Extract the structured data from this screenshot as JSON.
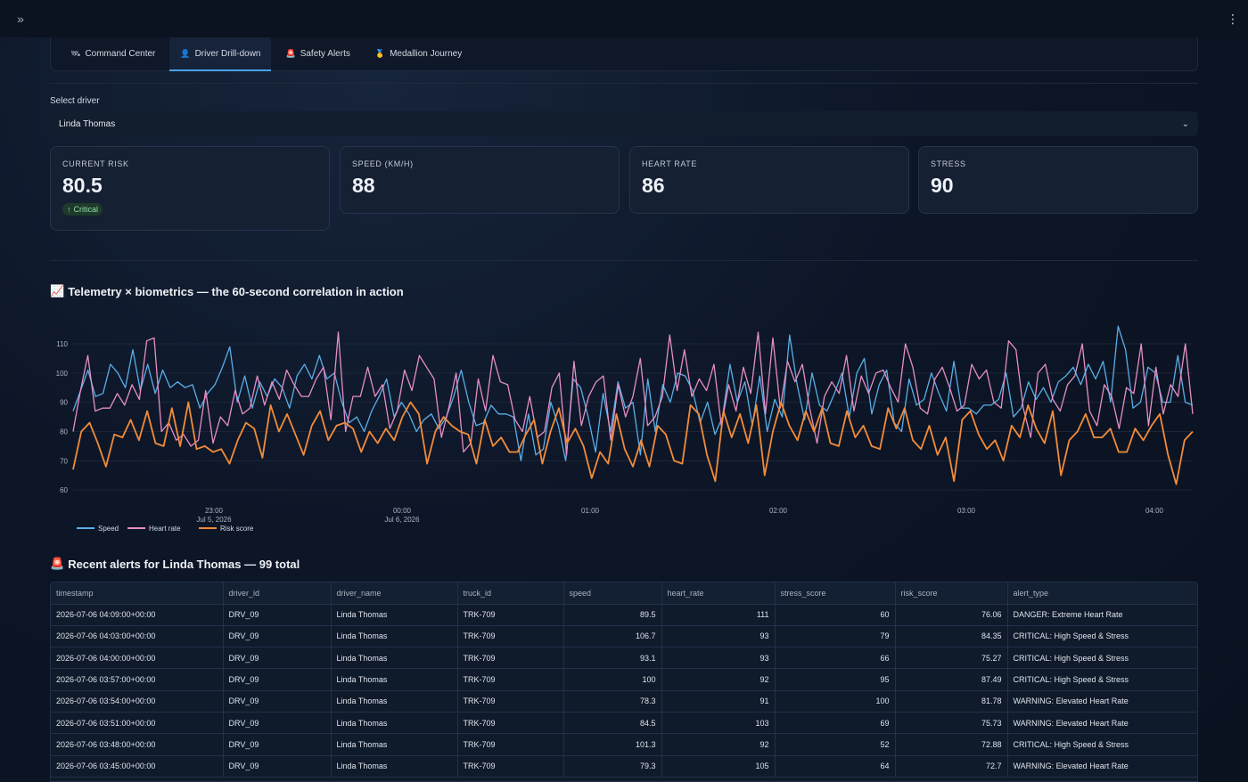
{
  "tabs": [
    {
      "icon": "🛰",
      "label": "Command Center"
    },
    {
      "icon": "👤",
      "label": "Driver Drill-down"
    },
    {
      "icon": "🚨",
      "label": "Safety Alerts"
    },
    {
      "icon": "🥇",
      "label": "Medallion Journey"
    }
  ],
  "driver_select": {
    "label": "Select driver",
    "value": "Linda Thomas"
  },
  "metrics": [
    {
      "label": "CURRENT RISK",
      "value": "80.5",
      "delta": "Critical"
    },
    {
      "label": "SPEED (KM/H)",
      "value": "88"
    },
    {
      "label": "HEART RATE",
      "value": "86"
    },
    {
      "label": "STRESS",
      "value": "90"
    }
  ],
  "chart_section": {
    "icon": "📈",
    "title": "Telemetry × biometrics — the 60-second correlation in action"
  },
  "chart_data": {
    "type": "line",
    "x_ticks": [
      {
        "label": "23:00",
        "sub": "Jul 5, 2026"
      },
      {
        "label": "00:00",
        "sub": "Jul 6, 2026"
      },
      {
        "label": "01:00",
        "sub": ""
      },
      {
        "label": "02:00",
        "sub": ""
      },
      {
        "label": "03:00",
        "sub": ""
      },
      {
        "label": "04:00",
        "sub": ""
      }
    ],
    "y_ticks": [
      60,
      70,
      80,
      90,
      100,
      110
    ],
    "ylim": [
      57,
      117
    ],
    "legend": "bottom-left",
    "series": [
      {
        "name": "Speed",
        "color": "#5aaee8",
        "values": [
          87,
          94,
          101,
          92,
          93,
          103,
          100,
          95,
          108,
          94,
          103,
          93,
          101,
          95,
          97,
          95,
          96,
          88,
          93,
          96,
          102,
          109,
          90,
          99,
          88,
          97,
          92,
          98,
          95,
          88,
          99,
          103,
          98,
          106,
          98,
          100,
          90,
          83,
          85,
          80,
          87,
          92,
          98,
          85,
          90,
          86,
          80,
          84,
          86,
          81,
          85,
          92,
          101,
          90,
          82,
          83,
          89,
          86,
          86,
          85,
          70,
          86,
          72,
          74,
          90,
          82,
          70,
          98,
          95,
          85,
          73,
          93,
          80,
          97,
          88,
          90,
          72,
          98,
          80,
          96,
          90,
          100,
          99,
          94,
          83,
          90,
          79,
          85,
          103,
          90,
          97,
          82,
          99,
          80,
          91,
          85,
          113,
          96,
          84,
          100,
          89,
          87,
          93,
          100,
          85,
          100,
          105,
          86,
          96,
          101,
          83,
          80,
          98,
          89,
          91,
          100,
          93,
          87,
          104,
          88,
          88,
          86,
          89,
          89,
          91,
          100,
          85,
          88,
          97,
          91,
          95,
          90,
          97,
          99,
          102,
          96,
          103,
          98,
          104,
          90,
          116,
          108,
          88,
          90,
          102,
          100,
          90,
          90,
          106,
          90,
          89
        ]
      },
      {
        "name": "Heart rate",
        "color": "#e58fc4",
        "values": [
          80,
          94,
          106,
          87,
          88,
          88,
          93,
          89,
          96,
          91,
          111,
          112,
          80,
          83,
          77,
          79,
          75,
          77,
          94,
          76,
          85,
          82,
          94,
          86,
          88,
          99,
          89,
          97,
          91,
          101,
          96,
          92,
          92,
          98,
          102,
          84,
          114,
          80,
          92,
          92,
          102,
          92,
          96,
          81,
          87,
          101,
          94,
          106,
          102,
          98,
          78,
          88,
          100,
          73,
          76,
          98,
          87,
          106,
          97,
          96,
          84,
          80,
          92,
          78,
          80,
          95,
          100,
          72,
          104,
          82,
          92,
          97,
          99,
          77,
          96,
          85,
          92,
          105,
          82,
          85,
          92,
          113,
          94,
          108,
          92,
          98,
          94,
          103,
          82,
          96,
          87,
          102,
          93,
          114,
          86,
          112,
          88,
          104,
          97,
          103,
          88,
          76,
          92,
          97,
          93,
          106,
          87,
          99,
          93,
          100,
          101,
          95,
          90,
          110,
          102,
          88,
          86,
          98,
          102,
          95,
          87,
          89,
          103,
          98,
          101,
          90,
          88,
          111,
          108,
          88,
          78,
          100,
          103,
          91,
          87,
          96,
          99,
          110,
          87,
          82,
          96,
          92,
          81,
          95,
          93,
          110,
          82,
          102,
          86,
          96,
          92,
          110,
          86
        ]
      },
      {
        "name": "Risk score",
        "color": "#f28c3a",
        "values": [
          67,
          80,
          83,
          76,
          68,
          79,
          78,
          84,
          77,
          87,
          76,
          75,
          88,
          75,
          90,
          74,
          75,
          73,
          74,
          69,
          77,
          83,
          81,
          71,
          89,
          80,
          86,
          79,
          72,
          82,
          87,
          77,
          82,
          83,
          81,
          73,
          80,
          76,
          81,
          77,
          85,
          90,
          86,
          69,
          80,
          85,
          82,
          80,
          79,
          69,
          84,
          75,
          78,
          73,
          73,
          79,
          84,
          69,
          80,
          88,
          76,
          81,
          75,
          64,
          73,
          69,
          86,
          74,
          68,
          77,
          68,
          82,
          79,
          70,
          69,
          89,
          86,
          72,
          63,
          87,
          78,
          86,
          76,
          89,
          65,
          80,
          90,
          82,
          77,
          87,
          80,
          88,
          76,
          75,
          87,
          78,
          82,
          75,
          74,
          88,
          81,
          88,
          77,
          74,
          82,
          72,
          78,
          63,
          84,
          87,
          79,
          74,
          77,
          70,
          82,
          78,
          89,
          81,
          76,
          87,
          65,
          77,
          80,
          86,
          78,
          78,
          81,
          73,
          73,
          81,
          77,
          82,
          86,
          72,
          62,
          77,
          80
        ]
      }
    ]
  },
  "alerts_section": {
    "icon": "🚨",
    "title": "Recent alerts for Linda Thomas — 99 total"
  },
  "table": {
    "columns": [
      "timestamp",
      "driver_id",
      "driver_name",
      "truck_id",
      "speed",
      "heart_rate",
      "stress_score",
      "risk_score",
      "alert_type"
    ],
    "rows": [
      [
        "2026-07-06 04:09:00+00:00",
        "DRV_09",
        "Linda Thomas",
        "TRK-709",
        "89.5",
        "111",
        "60",
        "76.06",
        "DANGER: Extreme Heart Rate"
      ],
      [
        "2026-07-06 04:03:00+00:00",
        "DRV_09",
        "Linda Thomas",
        "TRK-709",
        "106.7",
        "93",
        "79",
        "84.35",
        "CRITICAL: High Speed & Stress"
      ],
      [
        "2026-07-06 04:00:00+00:00",
        "DRV_09",
        "Linda Thomas",
        "TRK-709",
        "93.1",
        "93",
        "66",
        "75.27",
        "CRITICAL: High Speed & Stress"
      ],
      [
        "2026-07-06 03:57:00+00:00",
        "DRV_09",
        "Linda Thomas",
        "TRK-709",
        "100",
        "92",
        "95",
        "87.49",
        "CRITICAL: High Speed & Stress"
      ],
      [
        "2026-07-06 03:54:00+00:00",
        "DRV_09",
        "Linda Thomas",
        "TRK-709",
        "78.3",
        "91",
        "100",
        "81.78",
        "WARNING: Elevated Heart Rate"
      ],
      [
        "2026-07-06 03:51:00+00:00",
        "DRV_09",
        "Linda Thomas",
        "TRK-709",
        "84.5",
        "103",
        "69",
        "75.73",
        "WARNING: Elevated Heart Rate"
      ],
      [
        "2026-07-06 03:48:00+00:00",
        "DRV_09",
        "Linda Thomas",
        "TRK-709",
        "101.3",
        "92",
        "52",
        "72.88",
        "CRITICAL: High Speed & Stress"
      ],
      [
        "2026-07-06 03:45:00+00:00",
        "DRV_09",
        "Linda Thomas",
        "TRK-709",
        "79.3",
        "105",
        "64",
        "72.7",
        "WARNING: Elevated Heart Rate"
      ]
    ]
  }
}
